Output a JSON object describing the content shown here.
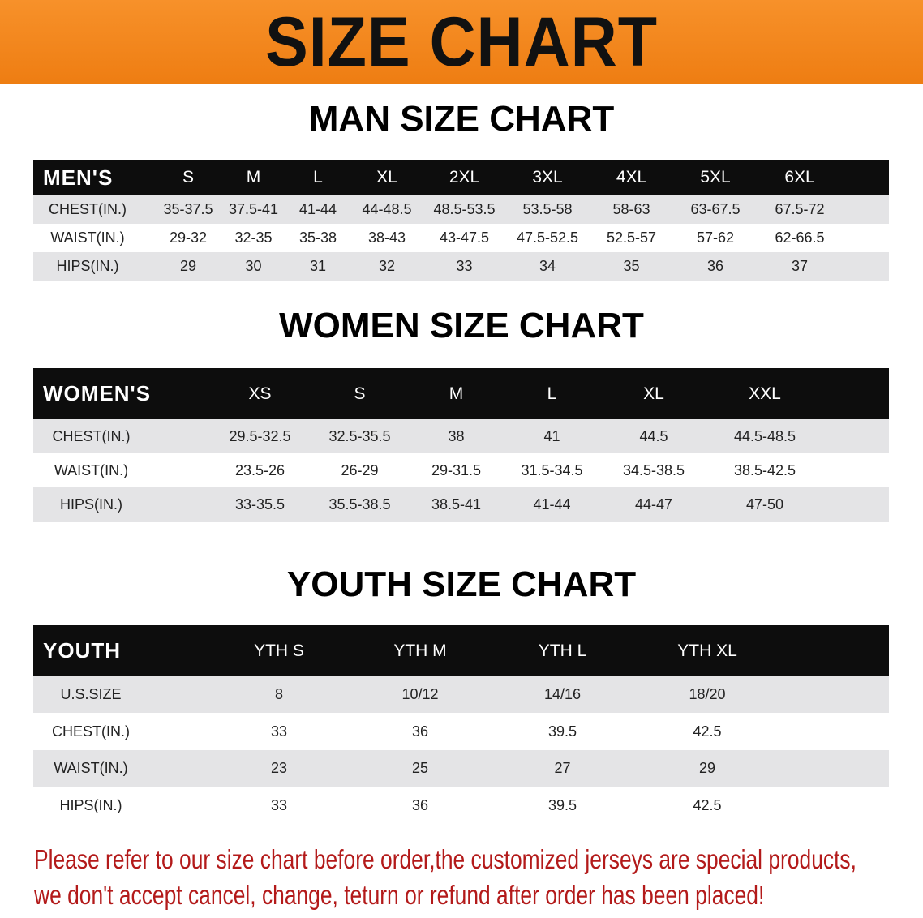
{
  "banner_title": "SIZE CHART",
  "colors": {
    "banner": "#f08318",
    "header_row": "#0d0d0d",
    "stripe": "#e4e4e6",
    "note": "#b31a1a"
  },
  "men": {
    "title": "MAN SIZE CHART",
    "header_label": "MEN'S",
    "sizes": [
      "S",
      "M",
      "L",
      "XL",
      "2XL",
      "3XL",
      "4XL",
      "5XL",
      "6XL"
    ],
    "rows": [
      {
        "label": "CHEST(IN.)",
        "values": [
          "35-37.5",
          "37.5-41",
          "41-44",
          "44-48.5",
          "48.5-53.5",
          "53.5-58",
          "58-63",
          "63-67.5",
          "67.5-72"
        ]
      },
      {
        "label": "WAIST(IN.)",
        "values": [
          "29-32",
          "32-35",
          "35-38",
          "38-43",
          "43-47.5",
          "47.5-52.5",
          "52.5-57",
          "57-62",
          "62-66.5"
        ]
      },
      {
        "label": "HIPS(IN.)",
        "values": [
          "29",
          "30",
          "31",
          "32",
          "33",
          "34",
          "35",
          "36",
          "37"
        ]
      }
    ]
  },
  "women": {
    "title": "WOMEN SIZE CHART",
    "header_label": "WOMEN'S",
    "sizes": [
      "XS",
      "S",
      "M",
      "L",
      "XL",
      "XXL"
    ],
    "rows": [
      {
        "label": "CHEST(IN.)",
        "values": [
          "29.5-32.5",
          "32.5-35.5",
          "38",
          "41",
          "44.5",
          "44.5-48.5"
        ]
      },
      {
        "label": "WAIST(IN.)",
        "values": [
          "23.5-26",
          "26-29",
          "29-31.5",
          "31.5-34.5",
          "34.5-38.5",
          "38.5-42.5"
        ]
      },
      {
        "label": "HIPS(IN.)",
        "values": [
          "33-35.5",
          "35.5-38.5",
          "38.5-41",
          "41-44",
          "44-47",
          "47-50"
        ]
      }
    ]
  },
  "youth": {
    "title": "YOUTH SIZE CHART",
    "header_label": "YOUTH",
    "sizes": [
      "YTH S",
      "YTH M",
      "YTH L",
      "YTH XL"
    ],
    "rows": [
      {
        "label": "U.S.SIZE",
        "values": [
          "8",
          "10/12",
          "14/16",
          "18/20"
        ]
      },
      {
        "label": "CHEST(IN.)",
        "values": [
          "33",
          "36",
          "39.5",
          "42.5"
        ]
      },
      {
        "label": "WAIST(IN.)",
        "values": [
          "23",
          "25",
          "27",
          "29"
        ]
      },
      {
        "label": "HIPS(IN.)",
        "values": [
          "33",
          "36",
          "39.5",
          "42.5"
        ]
      }
    ]
  },
  "note": {
    "line1": "Please refer to our size chart before order,the customized jerseys are special products,",
    "line2": "we don't accept cancel, change, teturn or refund after order has been placed!"
  }
}
